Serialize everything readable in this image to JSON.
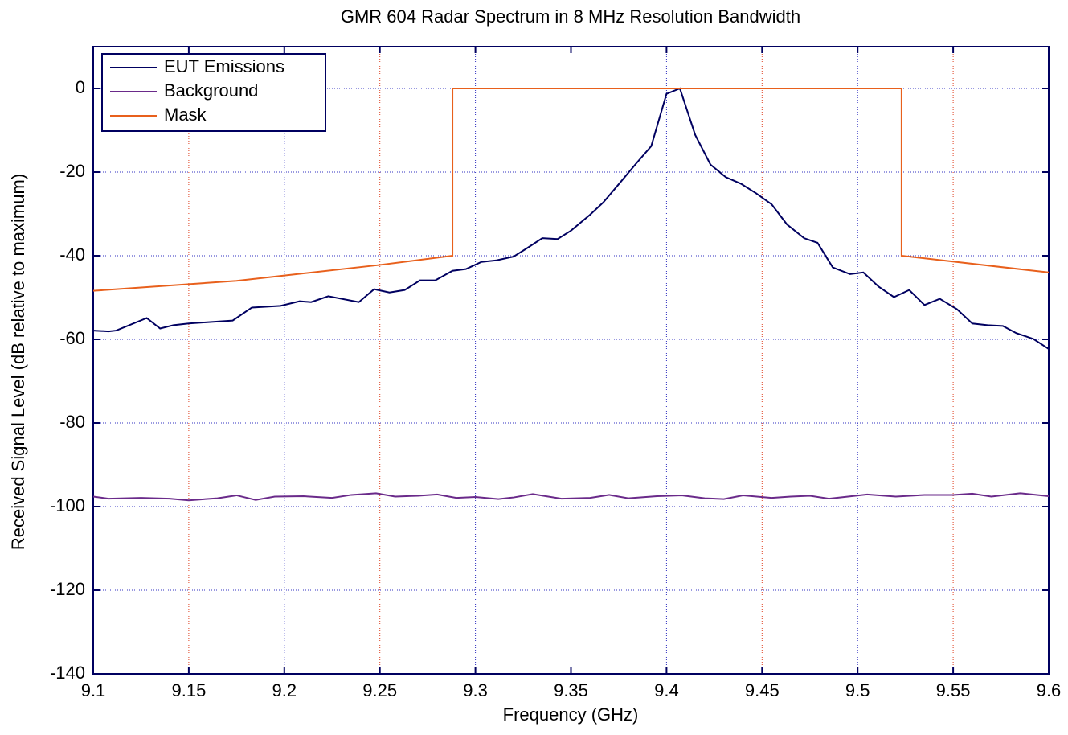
{
  "chart_data": {
    "type": "line",
    "title": "GMR 604 Radar Spectrum in 8 MHz Resolution Bandwidth",
    "xlabel": "Frequency (GHz)",
    "ylabel": "Received Signal Level (dB relative to maximum)",
    "xlim": [
      9.1,
      9.6
    ],
    "xticks": [
      9.1,
      9.15,
      9.2,
      9.25,
      9.3,
      9.35,
      9.4,
      9.45,
      9.5,
      9.55,
      9.6
    ],
    "ylim": [
      -140,
      10
    ],
    "yticks": [
      0,
      -20,
      -40,
      -60,
      -80,
      -100,
      -120,
      -140
    ],
    "grid": true,
    "legend": "upper left",
    "series": [
      {
        "name": "EUT Emissions",
        "color": "#000060",
        "x": [
          9.1,
          9.108,
          9.112,
          9.128,
          9.135,
          9.142,
          9.15,
          9.173,
          9.183,
          9.198,
          9.208,
          9.214,
          9.223,
          9.239,
          9.247,
          9.255,
          9.263,
          9.271,
          9.279,
          9.288,
          9.295,
          9.303,
          9.311,
          9.32,
          9.327,
          9.335,
          9.343,
          9.35,
          9.36,
          9.367,
          9.375,
          9.384,
          9.392,
          9.4,
          9.407,
          9.415,
          9.423,
          9.431,
          9.439,
          9.447,
          9.455,
          9.463,
          9.472,
          9.479,
          9.487,
          9.496,
          9.503,
          9.511,
          9.519,
          9.527,
          9.535,
          9.543,
          9.552,
          9.56,
          9.568,
          9.576,
          9.583,
          9.592,
          9.6
        ],
        "values": [
          -57.9,
          -58.1,
          -57.9,
          -54.9,
          -57.4,
          -56.6,
          -56.2,
          -55.5,
          -52.4,
          -52.0,
          -50.9,
          -51.1,
          -49.7,
          -51.1,
          -48.0,
          -48.8,
          -48.2,
          -45.9,
          -45.9,
          -43.6,
          -43.2,
          -41.5,
          -41.1,
          -40.2,
          -38.2,
          -35.8,
          -36.0,
          -34.0,
          -30.2,
          -27.2,
          -22.9,
          -18.0,
          -13.8,
          -1.3,
          0,
          -11.1,
          -18.2,
          -21.2,
          -22.8,
          -25.1,
          -27.7,
          -32.5,
          -35.8,
          -36.9,
          -42.8,
          -44.4,
          -44.0,
          -47.4,
          -49.9,
          -48.2,
          -51.8,
          -50.3,
          -52.8,
          -56.2,
          -56.6,
          -56.8,
          -58.5,
          -59.9,
          -62.3
        ]
      },
      {
        "name": "Background",
        "color": "#6a2a8a",
        "x": [
          9.1,
          9.108,
          9.125,
          9.14,
          9.15,
          9.165,
          9.175,
          9.185,
          9.195,
          9.21,
          9.225,
          9.235,
          9.248,
          9.258,
          9.27,
          9.28,
          9.29,
          9.3,
          9.312,
          9.32,
          9.33,
          9.345,
          9.36,
          9.37,
          9.38,
          9.395,
          9.408,
          9.42,
          9.43,
          9.44,
          9.455,
          9.465,
          9.475,
          9.485,
          9.495,
          9.505,
          9.52,
          9.535,
          9.55,
          9.56,
          9.57,
          9.585,
          9.6
        ],
        "values": [
          -97.6,
          -98.1,
          -97.9,
          -98.1,
          -98.5,
          -98.0,
          -97.3,
          -98.4,
          -97.6,
          -97.5,
          -97.9,
          -97.2,
          -96.8,
          -97.6,
          -97.4,
          -97.1,
          -97.9,
          -97.7,
          -98.2,
          -97.8,
          -97.0,
          -98.1,
          -97.9,
          -97.2,
          -98.0,
          -97.5,
          -97.3,
          -98.0,
          -98.2,
          -97.3,
          -97.9,
          -97.6,
          -97.4,
          -98.1,
          -97.6,
          -97.1,
          -97.6,
          -97.2,
          -97.2,
          -96.9,
          -97.6,
          -96.8,
          -97.5
        ]
      },
      {
        "name": "Mask",
        "color": "#e8601c",
        "x": [
          9.1,
          9.175,
          9.25,
          9.288,
          9.288,
          9.523,
          9.523,
          9.6
        ],
        "values": [
          -48.4,
          -46.0,
          -42.2,
          -40,
          0,
          0,
          -40,
          -44
        ]
      }
    ]
  }
}
